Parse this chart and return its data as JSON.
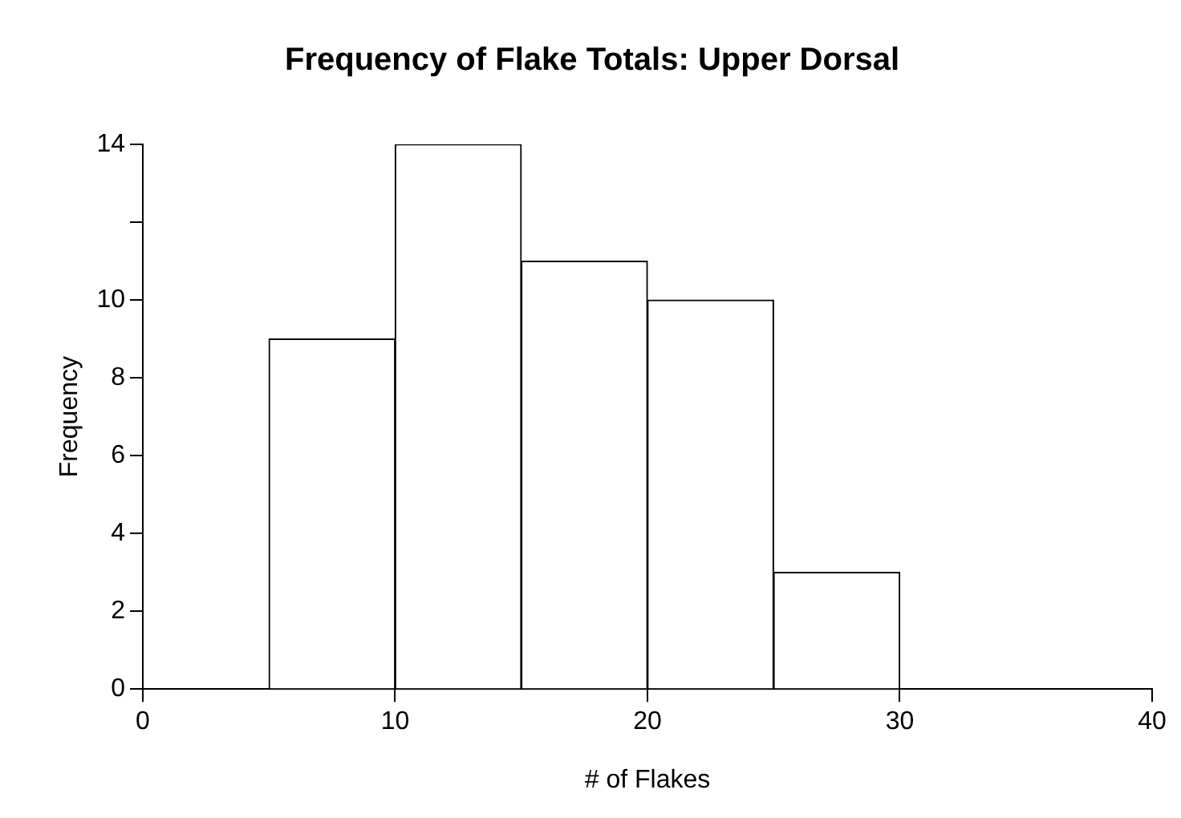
{
  "chart_data": {
    "type": "histogram",
    "title": "Frequency of Flake Totals: Upper Dorsal",
    "xlabel": "# of Flakes",
    "ylabel": "Frequency",
    "bins": [
      5,
      10,
      15,
      20,
      25,
      30
    ],
    "values": [
      9,
      14,
      11,
      10,
      3
    ],
    "color": "#ffffff",
    "xlim": [
      0,
      40
    ],
    "xticks": [
      0,
      10,
      20,
      30,
      40
    ],
    "ylim": [
      0,
      14
    ],
    "yticks": [
      0,
      2,
      4,
      6,
      8,
      10,
      {
        "value": 12,
        "label": null
      },
      14
    ]
  }
}
